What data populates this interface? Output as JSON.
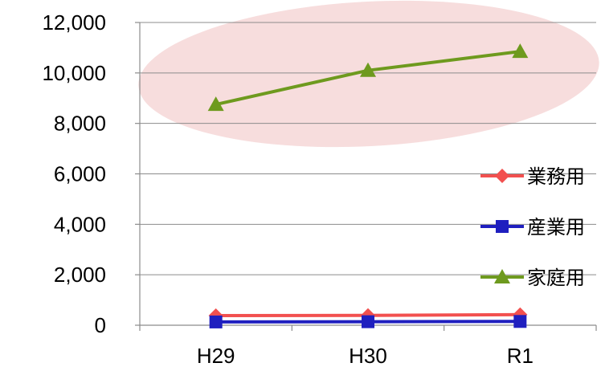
{
  "chart_data": {
    "type": "line",
    "categories": [
      "H29",
      "H30",
      "R1"
    ],
    "ylim": [
      0,
      12000
    ],
    "yticks": [
      0,
      2000,
      4000,
      6000,
      8000,
      10000,
      12000
    ],
    "ytick_labels": [
      "0",
      "2,000",
      "4,000",
      "6,000",
      "8,000",
      "10,000",
      "12,000"
    ],
    "grid": true,
    "legend_position": "right",
    "highlight": {
      "series": "家庭用",
      "color": "#f2c7c7"
    },
    "series": [
      {
        "name": "業務用",
        "values": [
          380,
          390,
          420
        ],
        "color": "#f2504f",
        "marker": "diamond"
      },
      {
        "name": "産業用",
        "values": [
          130,
          140,
          150
        ],
        "color": "#1f1fbf",
        "marker": "square"
      },
      {
        "name": "家庭用",
        "values": [
          8750,
          10100,
          10850
        ],
        "color": "#6e9a1e",
        "marker": "triangle"
      }
    ]
  }
}
